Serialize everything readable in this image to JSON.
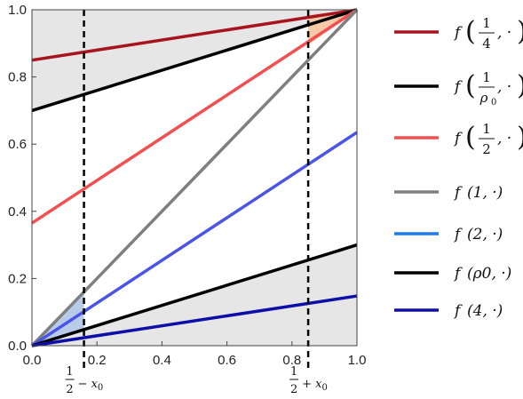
{
  "chart_data": {
    "type": "line",
    "xlim": [
      0,
      1
    ],
    "ylim": [
      0,
      1
    ],
    "xticks": [
      "0.0",
      "0.2",
      "0.4",
      "0.6",
      "0.8",
      "1.0"
    ],
    "yticks": [
      "0.0",
      "0.2",
      "0.4",
      "0.6",
      "0.8",
      "1.0"
    ],
    "grid": false,
    "legend_position": "right",
    "shaded_regions": [
      {
        "name": "upper-gray-region",
        "color": "#e6e6e6",
        "points": [
          [
            0,
            1
          ],
          [
            1,
            1
          ],
          [
            0,
            0.7
          ]
        ]
      },
      {
        "name": "lower-gray-region",
        "color": "#e6e6e6",
        "points": [
          [
            0,
            0
          ],
          [
            1,
            0
          ],
          [
            1,
            0.3
          ]
        ]
      },
      {
        "name": "orange-region",
        "color": "#f7c9a6",
        "points": [
          [
            0.85,
            0.895
          ],
          [
            1,
            1
          ],
          [
            0.85,
            0.985
          ]
        ]
      },
      {
        "name": "blue-region",
        "color": "#b8cbe8",
        "points": [
          [
            0,
            0
          ],
          [
            0.16,
            0.16
          ],
          [
            0.16,
            0.048
          ]
        ]
      }
    ],
    "series": [
      {
        "color": "#a8141e",
        "x": [
          0,
          1
        ],
        "y": [
          0.85,
          1.0
        ]
      },
      {
        "color": "#000000",
        "x": [
          0,
          1
        ],
        "y": [
          0.7,
          1.0
        ]
      },
      {
        "color": "#f25050",
        "x": [
          0,
          1
        ],
        "y": [
          0.365,
          1.0
        ]
      },
      {
        "color": "#7f7f7f",
        "x": [
          0,
          1
        ],
        "y": [
          0.0,
          1.0
        ]
      },
      {
        "color": "#4a55e8",
        "x": [
          0,
          1
        ],
        "y": [
          0.0,
          0.635
        ]
      },
      {
        "color": "#000000",
        "x": [
          0,
          1
        ],
        "y": [
          0.0,
          0.3
        ]
      },
      {
        "color": "#0e0ea8",
        "x": [
          0,
          1
        ],
        "y": [
          0.0,
          0.148
        ]
      }
    ],
    "vlines": [
      {
        "x": 0.16,
        "label_num": "1",
        "label_den": "2",
        "label_rest": "− x",
        "label_sub": "0"
      },
      {
        "x": 0.85,
        "label_num": "1",
        "label_den": "2",
        "label_rest": "+ x",
        "label_sub": "0"
      }
    ],
    "legend": [
      {
        "color": "#a8141e",
        "func": "f",
        "frac_num": "1",
        "frac_den": "4",
        "frac_den_sub": "",
        "plain": "",
        "tail": ", ·"
      },
      {
        "color": "#000000",
        "func": "f",
        "frac_num": "1",
        "frac_den": "ρ",
        "frac_den_sub": "0",
        "plain": "",
        "tail": ", ·"
      },
      {
        "color": "#f25050",
        "func": "f",
        "frac_num": "1",
        "frac_den": "2",
        "frac_den_sub": "",
        "plain": "",
        "tail": ", ·"
      },
      {
        "color": "#7f7f7f",
        "func": "f",
        "frac_num": "",
        "frac_den": "",
        "frac_den_sub": "",
        "plain": "1",
        "tail": ", ·"
      },
      {
        "color": "#1e7ae8",
        "func": "f",
        "frac_num": "",
        "frac_den": "",
        "frac_den_sub": "",
        "plain": "2",
        "tail": ", ·"
      },
      {
        "color": "#000000",
        "func": "f",
        "frac_num": "",
        "frac_den": "",
        "frac_den_sub": "",
        "plain": "ρ0",
        "tail": ", ·"
      },
      {
        "color": "#0e0ea8",
        "func": "f",
        "frac_num": "",
        "frac_den": "",
        "frac_den_sub": "",
        "plain": "4",
        "tail": ", ·"
      }
    ]
  }
}
